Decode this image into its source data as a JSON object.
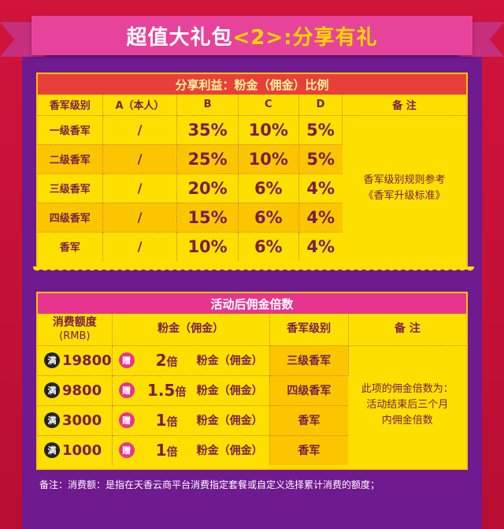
{
  "banner": {
    "title_prefix": "超值大礼包",
    "title_num": "<2>",
    "title_suffix": ":分享有礼"
  },
  "table1": {
    "title": "分享利益：粉金（佣金）比例",
    "headers": [
      "香军级别",
      "A（本人）",
      "B",
      "C",
      "D",
      "备 注"
    ],
    "rows": [
      {
        "level": "一级香军",
        "a": "/",
        "b": "35%",
        "c": "10%",
        "d": "5%"
      },
      {
        "level": "二级香军",
        "a": "/",
        "b": "25%",
        "c": "10%",
        "d": "5%"
      },
      {
        "level": "三级香军",
        "a": "/",
        "b": "20%",
        "c": "6%",
        "d": "4%"
      },
      {
        "level": "四级香军",
        "a": "/",
        "b": "15%",
        "c": "6%",
        "d": "4%"
      },
      {
        "level": "香军",
        "a": "/",
        "b": "10%",
        "c": "6%",
        "d": "4%"
      }
    ],
    "note_line1": "香军级别规则参考",
    "note_line2": "《香军升级标准》"
  },
  "table2": {
    "title": "活动后佣金倍数",
    "header_amount_line1": "消费额度",
    "header_amount_line2": "(RMB)",
    "header_commission": "粉金（佣金）",
    "header_rank": "香军级别",
    "header_note": "备 注",
    "badge_full": "满",
    "badge_gift": "赠",
    "unit": "倍",
    "commission_label": "粉金（佣金）",
    "rows": [
      {
        "amount": "19800",
        "multiple": "2",
        "rank": "三级香军"
      },
      {
        "amount": "9800",
        "multiple": "1.5",
        "rank": "四级香军"
      },
      {
        "amount": "3000",
        "multiple": "1",
        "rank": "香军"
      },
      {
        "amount": "1000",
        "multiple": "1",
        "rank": "香军"
      }
    ],
    "note_line1": "此项的佣金倍数为：",
    "note_line2": "活动结束后三个月",
    "note_line3": "内佣金倍数"
  },
  "footnote": "备注：消费额：是指在天香云商平台消费指定套餐或自定义选择累计消费的额度；",
  "colors": {
    "background": "#c8103a",
    "panel": "#6f1a8e",
    "card": "#fde000",
    "ribbon": "#e8439a",
    "head1": "#e93f3a",
    "head2": "#e6348f",
    "text": "#7a1c4a"
  }
}
